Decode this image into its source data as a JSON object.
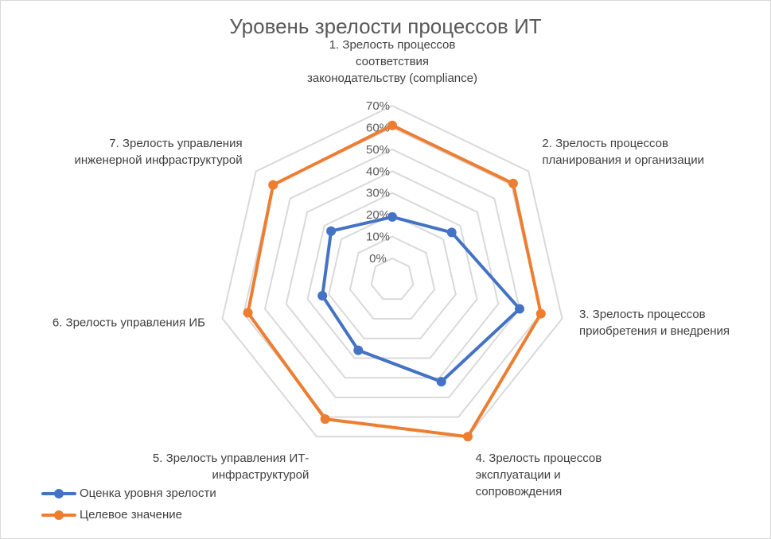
{
  "chart_data": {
    "type": "radar",
    "title": "Уровень зрелости процессов ИТ",
    "categories": [
      [
        "1. Зрелость процессов",
        "соответствия",
        "законодательству (compliance)"
      ],
      [
        "2. Зрелость процессов",
        "планирования и организации"
      ],
      [
        "3. Зрелость процессов",
        "приобретения и внедрения"
      ],
      [
        "4. Зрелость процессов",
        "эксплуатации и",
        "сопровождения"
      ],
      [
        "5. Зрелость управления ИТ-",
        "инфраструктурой"
      ],
      [
        "6. Зрелость управления ИБ"
      ],
      [
        "7. Зрелость управления",
        "инженерной инфраструктурой"
      ]
    ],
    "ticks": [
      "0%",
      "10%",
      "20%",
      "30%",
      "40%",
      "50%",
      "60%",
      "70%"
    ],
    "rlim": [
      0,
      0.7
    ],
    "grid": true,
    "legend_position": "bottom-left",
    "series": [
      {
        "name": "Оценка уровня зрелости",
        "color": "#4472c4",
        "values": [
          0.19,
          0.25,
          0.5,
          0.42,
          0.26,
          0.23,
          0.26
        ]
      },
      {
        "name": "Целевое значение",
        "color": "#ed7d31",
        "values": [
          0.61,
          0.61,
          0.6,
          0.7,
          0.61,
          0.58,
          0.6
        ]
      }
    ],
    "grid_color": "#d9d9d9"
  }
}
